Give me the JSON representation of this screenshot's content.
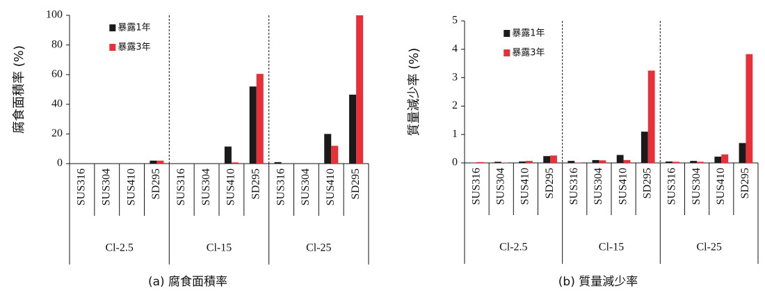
{
  "chart_data": [
    {
      "type": "bar",
      "caption": "(a) 腐食面積率",
      "ylabel": "腐食面積率 (%)",
      "categories": [
        "SUS316",
        "SUS304",
        "SUS410",
        "SD295",
        "SUS316",
        "SUS304",
        "SUS410",
        "SD295",
        "SUS316",
        "SUS304",
        "SUS410",
        "SD295"
      ],
      "groups": [
        "Cl-2.5",
        "Cl-15",
        "Cl-25"
      ],
      "series": [
        {
          "name": "暴露1年",
          "color": "#1a1a1a",
          "values": [
            0,
            0,
            0,
            2,
            0,
            0,
            11.5,
            52,
            1,
            0,
            20,
            46.5
          ]
        },
        {
          "name": "暴露3年",
          "color": "#e8303a",
          "values": [
            0,
            0,
            0,
            2,
            0,
            0,
            0.8,
            60.5,
            0,
            0,
            12,
            100
          ]
        }
      ],
      "ylim": [
        0,
        100
      ],
      "yticks": [
        0,
        20,
        40,
        60,
        80,
        100
      ],
      "legend": "upper left"
    },
    {
      "type": "bar",
      "caption": "(b) 質量減少率",
      "ylabel": "質量減少率 (%)",
      "categories": [
        "SUS316",
        "SUS304",
        "SUS410",
        "SD295",
        "SUS316",
        "SUS304",
        "SUS410",
        "SD295",
        "SUS316",
        "SUS304",
        "SUS410",
        "SD295"
      ],
      "groups": [
        "Cl-2.5",
        "Cl-15",
        "Cl-25"
      ],
      "series": [
        {
          "name": "暴露1年",
          "color": "#1a1a1a",
          "values": [
            0.01,
            0.04,
            0.05,
            0.24,
            0.07,
            0.1,
            0.28,
            1.1,
            0.05,
            0.07,
            0.22,
            0.7
          ]
        },
        {
          "name": "暴露3年",
          "color": "#e8303a",
          "values": [
            0.03,
            0.01,
            0.07,
            0.26,
            0.01,
            0.09,
            0.1,
            3.25,
            0.04,
            0.04,
            0.3,
            3.83
          ]
        }
      ],
      "ylim": [
        0,
        5
      ],
      "yticks": [
        0,
        1,
        2,
        3,
        4,
        5
      ],
      "legend": "upper left"
    }
  ]
}
